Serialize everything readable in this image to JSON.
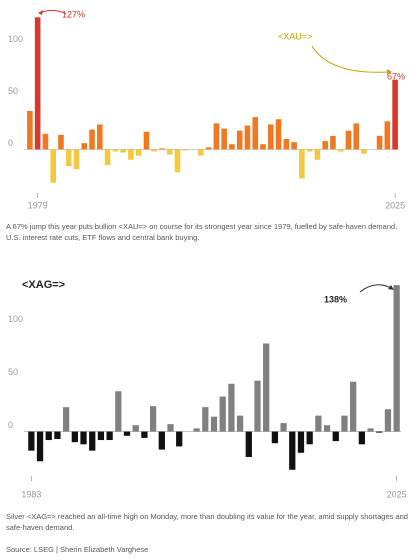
{
  "chart_data": [
    {
      "type": "bar",
      "title": "<XAU=>",
      "categories": [
        null,
        "1979",
        null,
        null,
        null,
        null,
        null,
        null,
        null,
        null,
        null,
        null,
        null,
        null,
        null,
        null,
        null,
        null,
        null,
        null,
        null,
        null,
        null,
        null,
        null,
        null,
        null,
        null,
        null,
        null,
        null,
        null,
        null,
        null,
        null,
        null,
        null,
        null,
        null,
        null,
        null,
        null,
        null,
        null,
        null,
        null,
        null,
        "2025"
      ],
      "values": [
        37,
        127,
        15,
        -32,
        14,
        -16,
        -19,
        6,
        19,
        24,
        -15,
        -2,
        -3,
        -10,
        -6,
        17,
        -2,
        1,
        -5,
        -22,
        -1,
        0,
        -6,
        2,
        25,
        20,
        5,
        18,
        23,
        31,
        5,
        24,
        29,
        10,
        7,
        -28,
        -2,
        -10,
        8,
        13,
        -2,
        18,
        25,
        -4,
        0,
        13,
        27,
        67
      ],
      "colors": [
        "#f07820",
        "#d8382e",
        "#f07820",
        "#f5c842",
        "#f07820",
        "#f5c842",
        "#f5c842",
        "#f07820",
        "#f07820",
        "#f07820",
        "#f5c842",
        "#f5c842",
        "#f5c842",
        "#f5c842",
        "#f5c842",
        "#f07820",
        "#f5c842",
        "#f07820",
        "#f5c842",
        "#f5c842",
        "#f5c842",
        "#f5c842",
        "#f5c842",
        "#f07820",
        "#f07820",
        "#f07820",
        "#f07820",
        "#f07820",
        "#f07820",
        "#f07820",
        "#f07820",
        "#f07820",
        "#f07820",
        "#f07820",
        "#f07820",
        "#f5c842",
        "#f5c842",
        "#f5c842",
        "#f07820",
        "#f07820",
        "#f5c842",
        "#f07820",
        "#f07820",
        "#f5c842",
        "#f5c842",
        "#f07820",
        "#f07820",
        "#d8382e"
      ],
      "annotations": [
        "127%",
        "67%"
      ],
      "ylim": [
        -40,
        135
      ],
      "yticks": [
        0,
        50,
        100
      ],
      "caption": "A 67% jump this year puts bullion <XAU=> on course for its strongest year since 1979, fuelled by safe-haven demand, U.S. interest rate cuts, ETF flows and central bank buying."
    },
    {
      "type": "bar",
      "title": "<XAG=>",
      "categories": [
        "1983",
        null,
        null,
        null,
        null,
        null,
        null,
        null,
        null,
        null,
        null,
        null,
        null,
        null,
        null,
        null,
        null,
        null,
        null,
        null,
        null,
        null,
        null,
        null,
        null,
        null,
        null,
        null,
        null,
        null,
        null,
        null,
        null,
        null,
        null,
        null,
        null,
        null,
        null,
        null,
        null,
        null,
        "2025"
      ],
      "values": [
        -18,
        -28,
        -8,
        -7,
        23,
        -10,
        -12,
        -18,
        -8,
        -8,
        38,
        -4,
        6,
        -6,
        24,
        -17,
        7,
        -14,
        0,
        3,
        23,
        14,
        33,
        45,
        15,
        -24,
        48,
        83,
        -11,
        8,
        -36,
        -20,
        -12,
        15,
        6,
        -9,
        15,
        47,
        -12,
        3,
        -1,
        21,
        138
      ],
      "color_positive": "#808080",
      "color_negative": "#111111",
      "annotations": [
        "138%"
      ],
      "ylim": [
        -40,
        140
      ],
      "yticks": [
        0,
        50,
        100
      ],
      "caption": "Silver <XAG=> reached an all-time high on Monday, more than doubling its value for the year, amid supply shortages and safe-haven demand."
    }
  ],
  "source": "Source: LSEG | Sherin Elizabeth Varghese"
}
